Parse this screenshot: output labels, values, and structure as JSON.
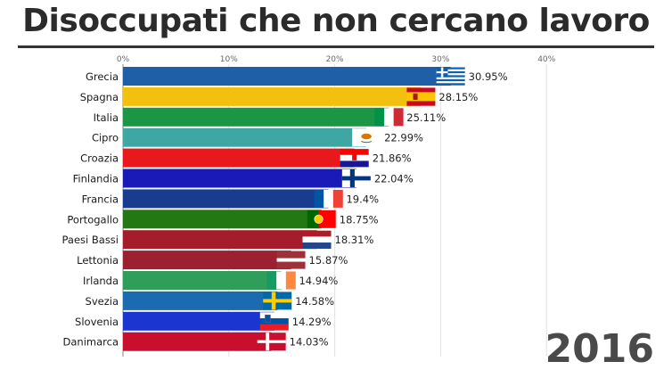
{
  "title": "Disoccupati che non cercano lavoro",
  "year": "2016",
  "chart_data": {
    "type": "bar",
    "orientation": "horizontal",
    "title": "Disoccupati che non cercano lavoro",
    "xlim": [
      0,
      40
    ],
    "ticks": [
      0,
      10,
      20,
      30,
      40
    ],
    "tick_labels": [
      "0%",
      "10%",
      "20%",
      "30%",
      "40%"
    ],
    "grid": true,
    "categories": [
      "Grecia",
      "Spagna",
      "Italia",
      "Cipro",
      "Croazia",
      "Finlandia",
      "Francia",
      "Portogallo",
      "Paesi Bassi",
      "Lettonia",
      "Irlanda",
      "Svezia",
      "Slovenia",
      "Danimarca"
    ],
    "values": [
      30.95,
      28.15,
      25.11,
      22.99,
      21.86,
      22.04,
      19.4,
      18.75,
      18.31,
      15.87,
      14.94,
      14.58,
      14.29,
      14.03
    ],
    "value_labels": [
      "30.95%",
      "28.15%",
      "25.11%",
      "22.99%",
      "21.86%",
      "22.04%",
      "19.4%",
      "18.75%",
      "18.31%",
      "15.87%",
      "14.94%",
      "14.58%",
      "14.29%",
      "14.03%"
    ],
    "bar_colors": [
      "#1e5fa8",
      "#f2c110",
      "#1a9645",
      "#3fa7a3",
      "#e8181c",
      "#1a1ab8",
      "#1a3c8e",
      "#237813",
      "#a51d2d",
      "#9c2030",
      "#2e9e5a",
      "#1a6bb0",
      "#1a35d0",
      "#c8102e"
    ],
    "flags": [
      "greece-flag",
      "spain-flag",
      "italy-flag",
      "cyprus-flag",
      "croatia-flag",
      "finland-flag",
      "france-flag",
      "portugal-flag",
      "netherlands-flag",
      "latvia-flag",
      "ireland-flag",
      "sweden-flag",
      "slovenia-flag",
      "denmark-flag"
    ]
  }
}
